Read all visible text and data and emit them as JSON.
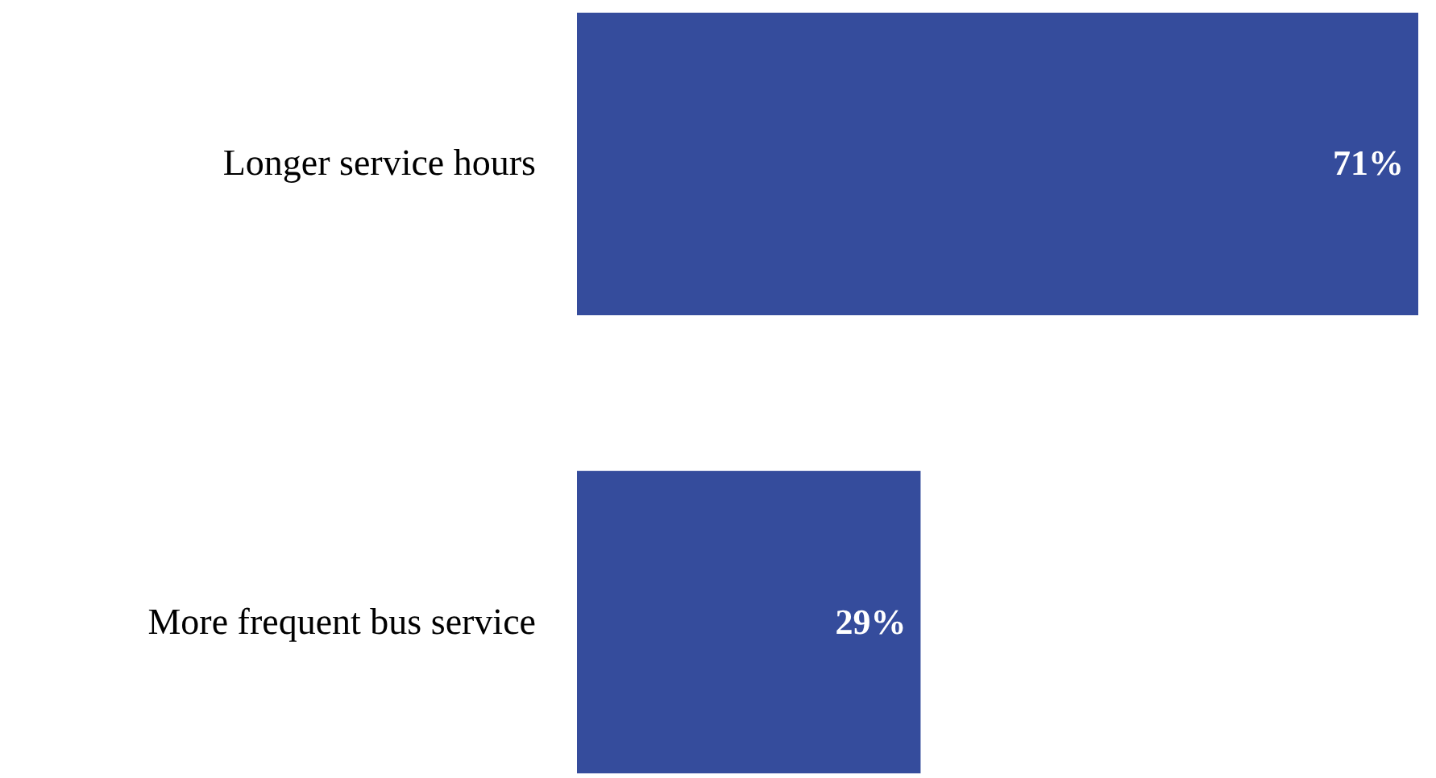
{
  "chart_data": {
    "type": "bar",
    "orientation": "horizontal",
    "categories": [
      "Longer service hours",
      "More frequent bus service"
    ],
    "values": [
      71,
      29
    ],
    "color": "#354c9c",
    "value_labels": [
      "71%",
      "29%"
    ],
    "xlim": [
      0,
      71
    ],
    "tick_labels": "y"
  }
}
